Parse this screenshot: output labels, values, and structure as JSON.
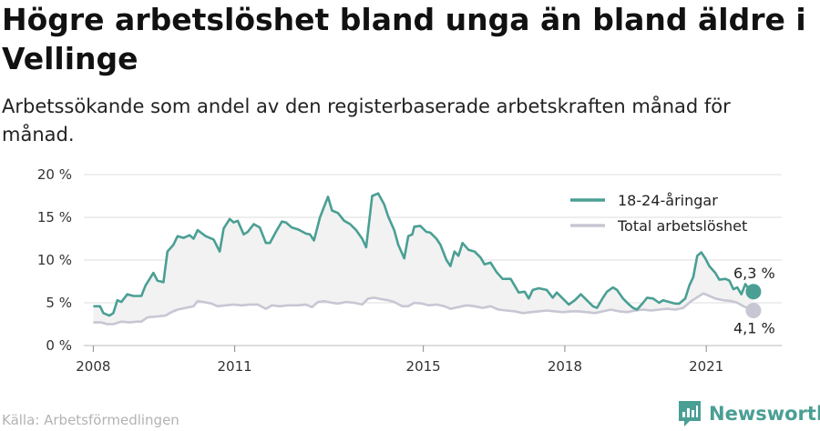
{
  "header": {
    "title": "Högre arbetslöshet bland unga än bland äldre i Vellinge",
    "subtitle": "Arbetssökande som andel av den registerbaserade arbetskraften månad för månad."
  },
  "footer": {
    "source": "Källa: Arbetsförmedlingen",
    "brand": "Newsworthy"
  },
  "icons": {
    "brand_logo": "newsworthy-bar-logo-icon"
  },
  "colors": {
    "youth": "#4a9f94",
    "total": "#c7c7d4",
    "gap_fill": "#f2f2f2",
    "grid": "#dddddd",
    "brand": "#4a9f94"
  },
  "chart_data": {
    "type": "line",
    "x_unit": "year",
    "y_unit": "%",
    "ylim": [
      0,
      20
    ],
    "xlim": [
      2007.8,
      2022.6
    ],
    "y_ticks": [
      {
        "value": 0,
        "label": "0 %"
      },
      {
        "value": 5,
        "label": "5 %"
      },
      {
        "value": 10,
        "label": "10 %"
      },
      {
        "value": 15,
        "label": "15 %"
      },
      {
        "value": 20,
        "label": "20 %"
      }
    ],
    "x_ticks": [
      {
        "value": 2008,
        "label": "2008"
      },
      {
        "value": 2011,
        "label": "2011"
      },
      {
        "value": 2015,
        "label": "2015"
      },
      {
        "value": 2018,
        "label": "2018"
      },
      {
        "value": 2021,
        "label": "2021"
      }
    ],
    "grid": true,
    "legend_position": "top-right",
    "series": [
      {
        "name": "18-24-åringar",
        "end_label": "6,3 %",
        "points": [
          [
            2008.0,
            4.6
          ],
          [
            2008.17,
            4.6
          ],
          [
            2008.25,
            3.8
          ],
          [
            2008.4,
            3.5
          ],
          [
            2008.5,
            3.8
          ],
          [
            2008.6,
            5.3
          ],
          [
            2008.7,
            5.1
          ],
          [
            2008.85,
            6.0
          ],
          [
            2009.0,
            5.8
          ],
          [
            2009.2,
            5.8
          ],
          [
            2009.3,
            7.0
          ],
          [
            2009.5,
            8.5
          ],
          [
            2009.6,
            7.6
          ],
          [
            2009.75,
            7.4
          ],
          [
            2009.85,
            11.0
          ],
          [
            2010.0,
            11.8
          ],
          [
            2010.1,
            12.8
          ],
          [
            2010.25,
            12.6
          ],
          [
            2010.4,
            12.9
          ],
          [
            2010.5,
            12.5
          ],
          [
            2010.6,
            13.5
          ],
          [
            2010.8,
            12.8
          ],
          [
            2011.0,
            12.4
          ],
          [
            2011.15,
            11.0
          ],
          [
            2011.25,
            13.7
          ],
          [
            2011.4,
            14.8
          ],
          [
            2011.5,
            14.4
          ],
          [
            2011.6,
            14.6
          ],
          [
            2011.75,
            13.0
          ],
          [
            2011.85,
            13.3
          ],
          [
            2012.0,
            14.2
          ],
          [
            2012.15,
            13.8
          ],
          [
            2012.3,
            12.0
          ],
          [
            2012.4,
            12.0
          ],
          [
            2012.55,
            13.3
          ],
          [
            2012.7,
            14.5
          ],
          [
            2012.8,
            14.4
          ],
          [
            2012.95,
            13.8
          ],
          [
            2013.1,
            13.6
          ],
          [
            2013.3,
            13.1
          ],
          [
            2013.4,
            13.0
          ],
          [
            2013.5,
            12.3
          ],
          [
            2013.65,
            15.0
          ],
          [
            2013.85,
            17.4
          ],
          [
            2013.95,
            15.8
          ],
          [
            2014.1,
            15.5
          ],
          [
            2014.25,
            14.6
          ],
          [
            2014.4,
            14.2
          ],
          [
            2014.55,
            13.5
          ],
          [
            2014.7,
            12.5
          ],
          [
            2014.8,
            11.5
          ],
          [
            2014.95,
            17.5
          ],
          [
            2015.1,
            17.8
          ],
          [
            2015.25,
            16.5
          ],
          [
            2015.35,
            15.1
          ],
          [
            2015.5,
            13.5
          ],
          [
            2015.6,
            11.8
          ],
          [
            2015.75,
            10.2
          ],
          [
            2015.85,
            12.8
          ],
          [
            2015.95,
            13.0
          ],
          [
            2016.0,
            13.9
          ],
          [
            2016.15,
            14.0
          ],
          [
            2016.3,
            13.3
          ],
          [
            2016.4,
            13.2
          ],
          [
            2016.55,
            12.5
          ],
          [
            2016.65,
            11.8
          ],
          [
            2016.8,
            10.0
          ],
          [
            2016.9,
            9.3
          ],
          [
            2017.0,
            11.0
          ],
          [
            2017.1,
            10.5
          ],
          [
            2017.2,
            12.0
          ],
          [
            2017.35,
            11.2
          ],
          [
            2017.5,
            11.0
          ],
          [
            2017.65,
            10.3
          ],
          [
            2017.75,
            9.5
          ],
          [
            2017.9,
            9.7
          ],
          [
            2018.05,
            8.6
          ],
          [
            2018.2,
            7.8
          ],
          [
            2018.4,
            7.8
          ],
          [
            2018.5,
            7.0
          ],
          [
            2018.6,
            6.2
          ],
          [
            2018.75,
            6.3
          ],
          [
            2018.85,
            5.5
          ],
          [
            2018.95,
            6.5
          ],
          [
            2019.1,
            6.7
          ],
          [
            2019.3,
            6.5
          ],
          [
            2019.45,
            5.6
          ],
          [
            2019.55,
            6.2
          ],
          [
            2019.7,
            5.5
          ],
          [
            2019.85,
            4.8
          ],
          [
            2020.0,
            5.3
          ],
          [
            2020.15,
            6.0
          ],
          [
            2020.3,
            5.3
          ],
          [
            2020.45,
            4.6
          ],
          [
            2020.55,
            4.4
          ],
          [
            2020.7,
            5.6
          ],
          [
            2020.8,
            6.3
          ],
          [
            2020.95,
            6.8
          ],
          [
            2021.05,
            6.5
          ],
          [
            2021.2,
            5.5
          ],
          [
            2021.35,
            4.8
          ],
          [
            2021.45,
            4.4
          ],
          [
            2021.55,
            4.2
          ],
          [
            2021.7,
            5.0
          ],
          [
            2021.8,
            5.6
          ],
          [
            2021.95,
            5.5
          ],
          [
            2022.1,
            5.0
          ],
          [
            2022.2,
            5.3
          ],
          [
            2022.35,
            5.1
          ],
          [
            2022.5,
            4.9
          ],
          [
            2022.6,
            4.9
          ],
          [
            2022.75,
            5.5
          ],
          [
            2022.85,
            7.0
          ],
          [
            2022.95,
            8.0
          ],
          [
            2023.05,
            10.5
          ],
          [
            2023.15,
            10.9
          ],
          [
            2023.25,
            10.2
          ],
          [
            2023.35,
            9.3
          ],
          [
            2023.5,
            8.5
          ],
          [
            2023.6,
            7.7
          ],
          [
            2023.75,
            7.8
          ],
          [
            2023.85,
            7.6
          ],
          [
            2023.95,
            6.6
          ],
          [
            2024.05,
            6.8
          ],
          [
            2024.15,
            6.0
          ],
          [
            2024.25,
            7.2
          ],
          [
            2024.35,
            6.5
          ],
          [
            2024.45,
            6.3
          ]
        ]
      },
      {
        "name": "Total arbetslöshet",
        "end_label": "4,1 %",
        "points": [
          [
            2008.0,
            2.7
          ],
          [
            2008.2,
            2.7
          ],
          [
            2008.35,
            2.5
          ],
          [
            2008.5,
            2.5
          ],
          [
            2008.7,
            2.8
          ],
          [
            2008.9,
            2.7
          ],
          [
            2009.1,
            2.8
          ],
          [
            2009.2,
            2.8
          ],
          [
            2009.35,
            3.3
          ],
          [
            2009.6,
            3.4
          ],
          [
            2009.8,
            3.5
          ],
          [
            2009.95,
            3.9
          ],
          [
            2010.1,
            4.2
          ],
          [
            2010.3,
            4.4
          ],
          [
            2010.5,
            4.6
          ],
          [
            2010.6,
            5.2
          ],
          [
            2010.75,
            5.1
          ],
          [
            2010.95,
            4.9
          ],
          [
            2011.1,
            4.6
          ],
          [
            2011.3,
            4.7
          ],
          [
            2011.5,
            4.8
          ],
          [
            2011.7,
            4.7
          ],
          [
            2011.9,
            4.8
          ],
          [
            2012.1,
            4.8
          ],
          [
            2012.3,
            4.3
          ],
          [
            2012.45,
            4.7
          ],
          [
            2012.65,
            4.6
          ],
          [
            2012.85,
            4.7
          ],
          [
            2013.1,
            4.7
          ],
          [
            2013.3,
            4.8
          ],
          [
            2013.45,
            4.5
          ],
          [
            2013.6,
            5.1
          ],
          [
            2013.75,
            5.2
          ],
          [
            2013.95,
            5.0
          ],
          [
            2014.1,
            4.9
          ],
          [
            2014.3,
            5.1
          ],
          [
            2014.5,
            5.0
          ],
          [
            2014.7,
            4.8
          ],
          [
            2014.85,
            5.5
          ],
          [
            2015.0,
            5.6
          ],
          [
            2015.2,
            5.4
          ],
          [
            2015.35,
            5.3
          ],
          [
            2015.5,
            5.1
          ],
          [
            2015.7,
            4.6
          ],
          [
            2015.85,
            4.6
          ],
          [
            2016.0,
            5.0
          ],
          [
            2016.2,
            4.9
          ],
          [
            2016.35,
            4.7
          ],
          [
            2016.55,
            4.8
          ],
          [
            2016.75,
            4.6
          ],
          [
            2016.9,
            4.3
          ],
          [
            2017.1,
            4.5
          ],
          [
            2017.3,
            4.7
          ],
          [
            2017.5,
            4.6
          ],
          [
            2017.7,
            4.4
          ],
          [
            2017.9,
            4.6
          ],
          [
            2018.1,
            4.2
          ],
          [
            2018.3,
            4.1
          ],
          [
            2018.5,
            4.0
          ],
          [
            2018.7,
            3.8
          ],
          [
            2018.9,
            3.9
          ],
          [
            2019.1,
            4.0
          ],
          [
            2019.3,
            4.1
          ],
          [
            2019.5,
            4.0
          ],
          [
            2019.7,
            3.9
          ],
          [
            2019.9,
            4.0
          ],
          [
            2020.1,
            4.0
          ],
          [
            2020.3,
            3.9
          ],
          [
            2020.5,
            3.8
          ],
          [
            2020.7,
            4.0
          ],
          [
            2020.9,
            4.2
          ],
          [
            2021.1,
            4.0
          ],
          [
            2021.3,
            3.9
          ],
          [
            2021.5,
            4.1
          ],
          [
            2021.7,
            4.2
          ],
          [
            2021.9,
            4.1
          ],
          [
            2022.1,
            4.2
          ],
          [
            2022.3,
            4.3
          ],
          [
            2022.5,
            4.2
          ],
          [
            2022.7,
            4.4
          ],
          [
            2022.9,
            5.2
          ],
          [
            2023.1,
            5.8
          ],
          [
            2023.2,
            6.1
          ],
          [
            2023.35,
            5.8
          ],
          [
            2023.5,
            5.5
          ],
          [
            2023.7,
            5.3
          ],
          [
            2023.9,
            5.2
          ],
          [
            2024.05,
            5.0
          ],
          [
            2024.2,
            4.6
          ],
          [
            2024.35,
            4.3
          ],
          [
            2024.45,
            4.1
          ]
        ]
      }
    ]
  }
}
